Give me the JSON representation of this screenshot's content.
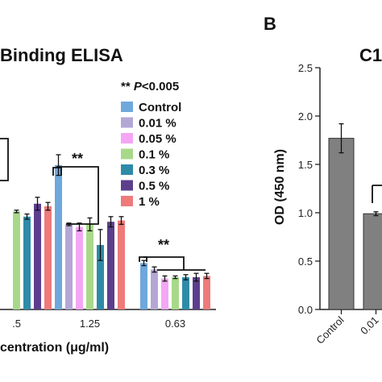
{
  "chart_data": [
    {
      "type": "bar",
      "title": "Binding ELISA",
      "xlabel": "centration (μg/ml)",
      "categories": [
        ".5",
        "1.25",
        "0.63"
      ],
      "series": [
        {
          "name": "Control",
          "color": "#6fa8dc",
          "values": [
            null,
            1.12,
            0.36
          ],
          "errors": [
            null,
            0.08,
            0.02
          ]
        },
        {
          "name": "0.01 %",
          "color": "#b4a7d6",
          "values": [
            null,
            0.66,
            0.31
          ],
          "errors": [
            null,
            0.01,
            0.02
          ]
        },
        {
          "name": "0.05 %",
          "color": "#f4a6f4",
          "values": [
            null,
            0.64,
            0.24
          ],
          "errors": [
            null,
            0.03,
            0.02
          ]
        },
        {
          "name": "0.1 %",
          "color": "#a8d98a",
          "values": [
            0.76,
            0.66,
            0.25
          ],
          "errors": [
            0.01,
            0.05,
            0.01
          ]
        },
        {
          "name": "0.3 %",
          "color": "#2e8ba8",
          "values": [
            0.72,
            0.5,
            0.25
          ],
          "errors": [
            0.02,
            0.12,
            0.02
          ]
        },
        {
          "name": "0.5 %",
          "color": "#5c3f8c",
          "values": [
            0.82,
            0.68,
            0.25
          ],
          "errors": [
            0.05,
            0.04,
            0.03
          ]
        },
        {
          "name": "1 %",
          "color": "#ee7a7a",
          "values": [
            0.8,
            0.69,
            0.26
          ],
          "errors": [
            0.03,
            0.03,
            0.02
          ]
        }
      ],
      "legend_title_stars": "**",
      "legend_title_p": "P",
      "legend_title_rest": "<0.005",
      "significance": [
        "**",
        "**"
      ],
      "legend": "top-right",
      "grid": false
    },
    {
      "type": "bar",
      "panel_label": "B",
      "title": "C1",
      "ylabel": "OD (450 nm)",
      "yticks": [
        "0.0",
        "0.5",
        "1.0",
        "1.5",
        "2.0",
        "2.5"
      ],
      "ylim": [
        0,
        2.5
      ],
      "categories": [
        "Control",
        "0.01"
      ],
      "values": [
        1.77,
        0.99
      ],
      "errors": [
        0.15,
        0.02
      ],
      "color": "#808080",
      "grid": false
    }
  ]
}
